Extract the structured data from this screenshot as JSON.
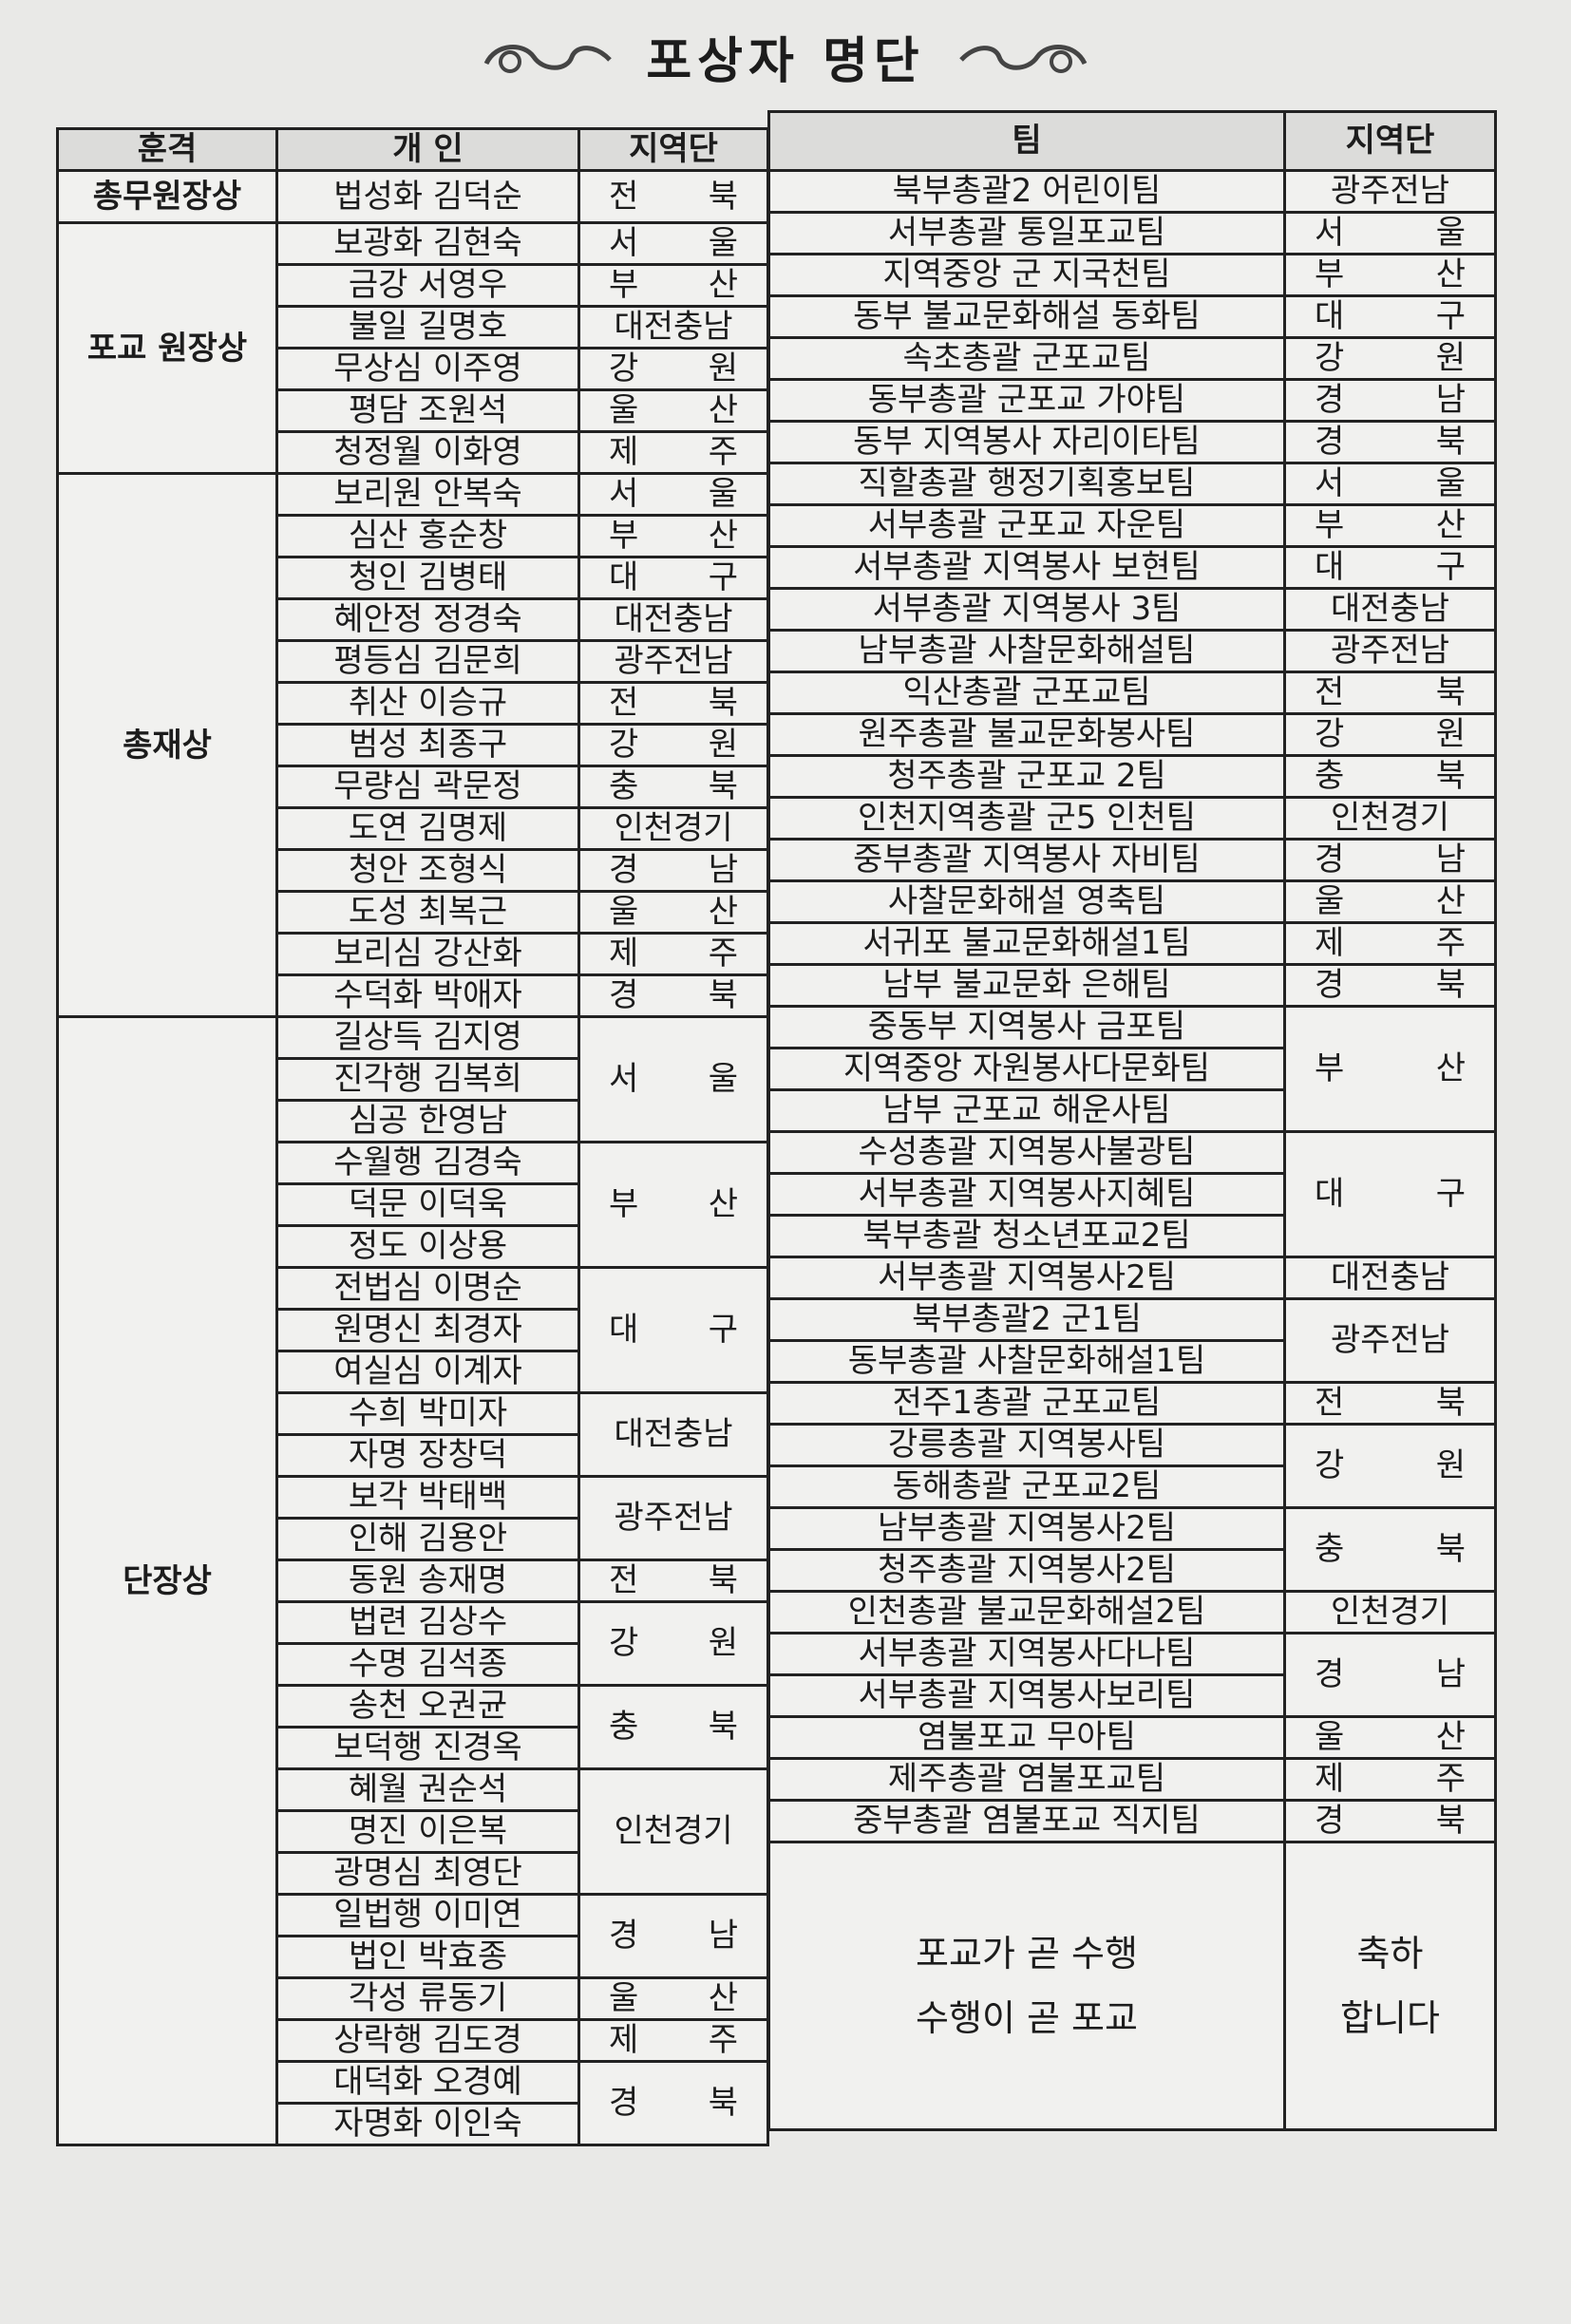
{
  "title": "포상자 명단",
  "left_headers": {
    "grade": "훈격",
    "person": "개 인",
    "region": "지역단"
  },
  "right_headers": {
    "team": "팀",
    "region": "지역단"
  },
  "left_groups": [
    {
      "grade": "총무원장상",
      "rows": [
        {
          "name": "법성화 김덕순",
          "region": "전북"
        }
      ]
    },
    {
      "grade": "포교 원장상",
      "rows": [
        {
          "name": "보광화 김현숙",
          "region": "서울"
        },
        {
          "name": "금강 서영우",
          "region": "부산"
        },
        {
          "name": "불일 길명호",
          "region": "대전충남"
        },
        {
          "name": "무상심 이주영",
          "region": "강원"
        },
        {
          "name": "평담 조원석",
          "region": "울산"
        },
        {
          "name": "청정월 이화영",
          "region": "제주"
        }
      ]
    },
    {
      "grade": "총재상",
      "rows": [
        {
          "name": "보리원 안복숙",
          "region": "서울"
        },
        {
          "name": "심산 홍순창",
          "region": "부산"
        },
        {
          "name": "청인 김병태",
          "region": "대구"
        },
        {
          "name": "혜안정 정경숙",
          "region": "대전충남"
        },
        {
          "name": "평등심 김문희",
          "region": "광주전남"
        },
        {
          "name": "취산 이승규",
          "region": "전북"
        },
        {
          "name": "범성 최종구",
          "region": "강원"
        },
        {
          "name": "무량심 곽문정",
          "region": "충북"
        },
        {
          "name": "도연 김명제",
          "region": "인천경기"
        },
        {
          "name": "청안 조형식",
          "region": "경남"
        },
        {
          "name": "도성 최복근",
          "region": "울산"
        },
        {
          "name": "보리심 강산화",
          "region": "제주"
        },
        {
          "name": "수덕화 박애자",
          "region": "경북"
        }
      ]
    },
    {
      "grade": "단장상",
      "region_groups": [
        {
          "region": "서울",
          "names": [
            "길상득 김지영",
            "진각행 김복희",
            "심공 한영남"
          ]
        },
        {
          "region": "부산",
          "names": [
            "수월행 김경숙",
            "덕문 이덕욱",
            "정도 이상용"
          ]
        },
        {
          "region": "대구",
          "names": [
            "전법심 이명순",
            "원명신 최경자",
            "여실심 이계자"
          ]
        },
        {
          "region": "대전충남",
          "names": [
            "수희 박미자",
            "자명 장창덕"
          ]
        },
        {
          "region": "광주전남",
          "names": [
            "보각 박태백",
            "인해 김용안"
          ]
        },
        {
          "region": "전북",
          "names": [
            "동원 송재명"
          ]
        },
        {
          "region": "강원",
          "names": [
            "법련 김상수",
            "수명 김석종"
          ]
        },
        {
          "region": "충북",
          "names": [
            "송천 오권균",
            "보덕행 진경옥"
          ]
        },
        {
          "region": "인천경기",
          "names": [
            "혜월 권순석",
            "명진 이은복",
            "광명심 최영단"
          ]
        },
        {
          "region": "경남",
          "names": [
            "일법행 이미연",
            "법인 박효종"
          ]
        },
        {
          "region": "울산",
          "names": [
            "각성 류동기"
          ]
        },
        {
          "region": "제주",
          "names": [
            "상락행 김도경"
          ]
        },
        {
          "region": "경북",
          "names": [
            "대덕화 오경예",
            "자명화 이인숙"
          ]
        }
      ]
    }
  ],
  "right_groups": [
    {
      "region": "광주전남",
      "teams": [
        "북부총괄2 어린이팀"
      ]
    },
    {
      "region": "서울",
      "teams": [
        "서부총괄 통일포교팀"
      ]
    },
    {
      "region": "부산",
      "teams": [
        "지역중앙 군 지국천팀"
      ]
    },
    {
      "region": "대구",
      "teams": [
        "동부 불교문화해설 동화팀"
      ]
    },
    {
      "region": "강원",
      "teams": [
        "속초총괄 군포교팀"
      ]
    },
    {
      "region": "경남",
      "teams": [
        "동부총괄 군포교 가야팀"
      ]
    },
    {
      "region": "경북",
      "teams": [
        "동부 지역봉사 자리이타팀"
      ]
    },
    {
      "region": "서울",
      "teams": [
        "직할총괄 행정기획홍보팀"
      ]
    },
    {
      "region": "부산",
      "teams": [
        "서부총괄 군포교 자운팀"
      ]
    },
    {
      "region": "대구",
      "teams": [
        "서부총괄 지역봉사 보현팀"
      ]
    },
    {
      "region": "대전충남",
      "teams": [
        "서부총괄 지역봉사 3팀"
      ]
    },
    {
      "region": "광주전남",
      "teams": [
        "남부총괄 사찰문화해설팀"
      ]
    },
    {
      "region": "전북",
      "teams": [
        "익산총괄 군포교팀"
      ]
    },
    {
      "region": "강원",
      "teams": [
        "원주총괄 불교문화봉사팀"
      ]
    },
    {
      "region": "충북",
      "teams": [
        "청주총괄 군포교 2팀"
      ]
    },
    {
      "region": "인천경기",
      "teams": [
        "인천지역총괄 군5 인천팀"
      ]
    },
    {
      "region": "경남",
      "teams": [
        "중부총괄 지역봉사 자비팀"
      ]
    },
    {
      "region": "울산",
      "teams": [
        "사찰문화해설 영축팀"
      ]
    },
    {
      "region": "제주",
      "teams": [
        "서귀포 불교문화해설1팀"
      ]
    },
    {
      "region": "경북",
      "teams": [
        "남부 불교문화 은해팀"
      ]
    },
    {
      "region": "부산",
      "teams": [
        "중동부 지역봉사 금포팀",
        "지역중앙 자원봉사다문화팀",
        "남부 군포교 해운사팀"
      ]
    },
    {
      "region": "대구",
      "teams": [
        "수성총괄 지역봉사불광팀",
        "서부총괄 지역봉사지혜팀",
        "북부총괄 청소년포교2팀"
      ]
    },
    {
      "region": "대전충남",
      "teams": [
        "서부총괄 지역봉사2팀"
      ]
    },
    {
      "region": "광주전남",
      "teams": [
        "북부총괄2 군1팀",
        "동부총괄 사찰문화해설1팀"
      ]
    },
    {
      "region": "전북",
      "teams": [
        "전주1총괄 군포교팀"
      ]
    },
    {
      "region": "강원",
      "teams": [
        "강릉총괄 지역봉사팀",
        "동해총괄 군포교2팀"
      ]
    },
    {
      "region": "충북",
      "teams": [
        "남부총괄 지역봉사2팀",
        "청주총괄 지역봉사2팀"
      ]
    },
    {
      "region": "인천경기",
      "teams": [
        "인천총괄 불교문화해설2팀"
      ]
    },
    {
      "region": "경남",
      "teams": [
        "서부총괄 지역봉사다나팀",
        "서부총괄 지역봉사보리팀"
      ]
    },
    {
      "region": "울산",
      "teams": [
        "염불포교 무아팀"
      ]
    },
    {
      "region": "제주",
      "teams": [
        "제주총괄 염불포교팀"
      ]
    },
    {
      "region": "경북",
      "teams": [
        "중부총괄 염불포교 직지팀"
      ]
    }
  ],
  "slogan": {
    "line1": "포교가 곧 수행",
    "line2": "수행이 곧 포교"
  },
  "congrats": {
    "line1": "축하",
    "line2": "합니다"
  }
}
